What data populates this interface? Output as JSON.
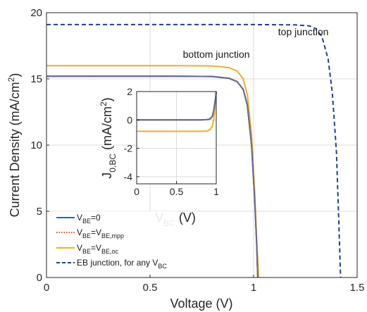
{
  "chart_data": [
    {
      "type": "line",
      "xlabel": "Voltage (V)",
      "ylabel_main": "Current Density (mA/cm",
      "ylabel_sup": "2",
      "ylabel_close": ")",
      "xlim": [
        0,
        1.5
      ],
      "ylim": [
        0,
        20
      ],
      "xticks": [
        "0",
        "0.5",
        "1",
        "1.5"
      ],
      "yticks": [
        "0",
        "5",
        "10",
        "15",
        "20"
      ],
      "grid": true,
      "legend_position": "bottom-left",
      "annotations": [
        {
          "label": "bottom junction",
          "x": 0.82,
          "y": 16.6
        },
        {
          "label": "top junction",
          "x": 1.24,
          "y": 18.3
        }
      ],
      "series": [
        {
          "legend_main": "V",
          "legend_sub": "BE",
          "legend_rest": "=0",
          "color": "#0072BD",
          "style": "solid",
          "x": [
            0,
            0.6,
            0.8,
            0.88,
            0.92,
            0.95,
            0.97,
            0.99,
            1.005,
            1.015,
            1.02
          ],
          "y": [
            15.2,
            15.2,
            15.18,
            15.05,
            14.8,
            14.2,
            13.0,
            10.0,
            6.0,
            2.5,
            0
          ]
        },
        {
          "legend_main": "V",
          "legend_sub": "BE",
          "legend_rest": "=V",
          "legend_sub2": "BE,mpp",
          "color": "#D95319",
          "style": "dotted",
          "x": [
            0,
            0.6,
            0.8,
            0.88,
            0.92,
            0.95,
            0.97,
            0.99,
            1.005,
            1.015,
            1.02
          ],
          "y": [
            15.2,
            15.2,
            15.18,
            15.05,
            14.8,
            14.2,
            13.0,
            10.0,
            6.0,
            2.5,
            0
          ]
        },
        {
          "legend_main": "V",
          "legend_sub": "BE",
          "legend_rest": "=V",
          "legend_sub2": "BE,oc",
          "color": "#EDB120",
          "style": "solid",
          "x": [
            0,
            0.6,
            0.8,
            0.88,
            0.92,
            0.95,
            0.97,
            0.99,
            1.005,
            1.015,
            1.025
          ],
          "y": [
            16.0,
            16.0,
            15.98,
            15.85,
            15.6,
            15.0,
            13.8,
            10.8,
            6.5,
            2.8,
            0
          ]
        },
        {
          "legend_main": "EB junction, for any V",
          "legend_sub": "BC",
          "legend_rest": "",
          "color": "#1F3F9A",
          "style": "dashed",
          "x": [
            0,
            1.0,
            1.2,
            1.27,
            1.3,
            1.33,
            1.36,
            1.38,
            1.4,
            1.41,
            1.42
          ],
          "y": [
            19.1,
            19.1,
            19.08,
            19.0,
            18.8,
            18.2,
            16.5,
            14.0,
            9.5,
            5.0,
            0
          ]
        },
        {
          "legend_main": "",
          "legend_sub": "",
          "legend_rest": "",
          "color": "#6B6B8C",
          "style": "solid",
          "x": [
            0,
            0.6,
            0.8,
            0.88,
            0.92,
            0.95,
            0.97,
            0.99,
            1.005,
            1.015,
            1.02
          ],
          "y": [
            15.2,
            15.2,
            15.18,
            15.05,
            14.8,
            14.2,
            13.0,
            10.0,
            6.0,
            2.5,
            0
          ]
        }
      ]
    },
    {
      "type": "line",
      "xlabel_main": "V",
      "xlabel_sub": "BC",
      "xlabel_unit": " (V)",
      "ylabel_main": "J",
      "ylabel_sub": "0,BC",
      "ylabel_unit": " (mA/cm",
      "ylabel_sup": "2",
      "ylabel_close": ")",
      "xlim": [
        0,
        1
      ],
      "ylim": [
        -4.5,
        2
      ],
      "xticks": [
        "0",
        "0.5",
        "1"
      ],
      "yticks": [
        "-4",
        "-2",
        "0",
        "2"
      ],
      "grid": true,
      "series": [
        {
          "color": "#0072BD",
          "style": "solid",
          "x": [
            0,
            0.6,
            0.8,
            0.88,
            0.92,
            0.95,
            0.97,
            0.99,
            1.0
          ],
          "y": [
            0,
            0,
            0,
            0.02,
            0.06,
            0.25,
            0.7,
            1.5,
            2.0
          ]
        },
        {
          "color": "#D95319",
          "style": "dotted",
          "x": [
            0,
            0.6,
            0.8,
            0.88,
            0.92,
            0.95,
            0.97,
            0.99,
            1.0
          ],
          "y": [
            0,
            0,
            0,
            0.02,
            0.06,
            0.25,
            0.7,
            1.5,
            2.0
          ]
        },
        {
          "color": "#EDB120",
          "style": "solid",
          "x": [
            0,
            0.6,
            0.8,
            0.88,
            0.92,
            0.95,
            0.97,
            0.985,
            1.0
          ],
          "y": [
            -0.8,
            -0.8,
            -0.8,
            -0.78,
            -0.7,
            -0.45,
            0.1,
            1.0,
            2.0
          ]
        },
        {
          "color": "#6B6B8C",
          "style": "solid",
          "x": [
            0,
            0.6,
            0.8,
            0.88,
            0.92,
            0.95,
            0.97,
            0.99,
            1.0
          ],
          "y": [
            0,
            0,
            0,
            0.02,
            0.06,
            0.25,
            0.7,
            1.5,
            2.0
          ]
        }
      ]
    }
  ]
}
